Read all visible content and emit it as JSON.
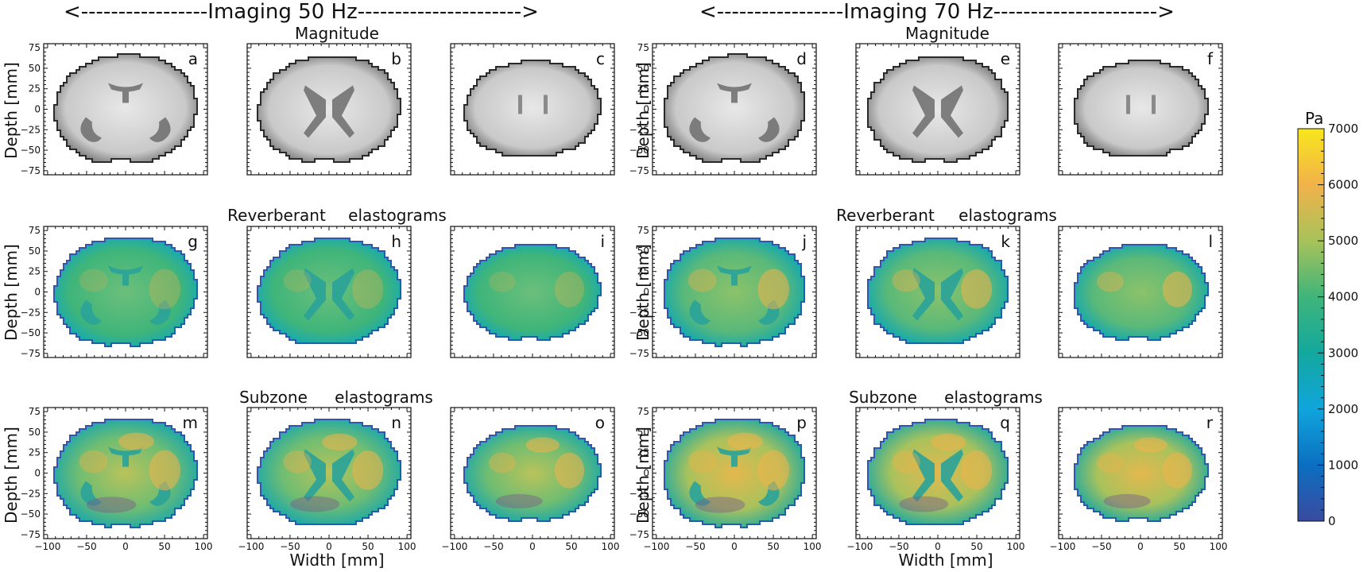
{
  "headers": {
    "left": "<-----------------Imaging 50 Hz---------------------->",
    "right": "<-----------------Imaging 70 Hz---------------------->"
  },
  "row_titles": {
    "magnitude": "Magnitude",
    "reverberant_a": "Reverberant",
    "reverberant_b": "elastograms",
    "subzone_a": "Subzone",
    "subzone_b": "elastograms"
  },
  "axis_labels": {
    "y": "Depth [mm]",
    "x": "Width [mm]"
  },
  "colorbar": {
    "unit": "Pa",
    "ticks": [
      "0",
      "1000",
      "2000",
      "3000",
      "4000",
      "5000",
      "6000",
      "7000"
    ]
  },
  "chart_data": {
    "type": "heatmap",
    "x_ticks": [
      "−100",
      "−50",
      "0",
      "50",
      "100"
    ],
    "y_ticks": [
      "75",
      "50",
      "25",
      "0",
      "−25",
      "−50",
      "−75"
    ],
    "xlim": [
      -105,
      105
    ],
    "ylim": [
      -80,
      80
    ],
    "panels": [
      {
        "label": "a",
        "row": "magnitude",
        "freq_hz": 50,
        "slice": 1
      },
      {
        "label": "b",
        "row": "magnitude",
        "freq_hz": 50,
        "slice": 2
      },
      {
        "label": "c",
        "row": "magnitude",
        "freq_hz": 50,
        "slice": 3
      },
      {
        "label": "d",
        "row": "magnitude",
        "freq_hz": 70,
        "slice": 1
      },
      {
        "label": "e",
        "row": "magnitude",
        "freq_hz": 70,
        "slice": 2
      },
      {
        "label": "f",
        "row": "magnitude",
        "freq_hz": 70,
        "slice": 3
      },
      {
        "label": "g",
        "row": "reverberant",
        "freq_hz": 50,
        "slice": 1
      },
      {
        "label": "h",
        "row": "reverberant",
        "freq_hz": 50,
        "slice": 2
      },
      {
        "label": "i",
        "row": "reverberant",
        "freq_hz": 50,
        "slice": 3
      },
      {
        "label": "j",
        "row": "reverberant",
        "freq_hz": 70,
        "slice": 1
      },
      {
        "label": "k",
        "row": "reverberant",
        "freq_hz": 70,
        "slice": 2
      },
      {
        "label": "l",
        "row": "reverberant",
        "freq_hz": 70,
        "slice": 3
      },
      {
        "label": "m",
        "row": "subzone",
        "freq_hz": 50,
        "slice": 1
      },
      {
        "label": "n",
        "row": "subzone",
        "freq_hz": 50,
        "slice": 2
      },
      {
        "label": "o",
        "row": "subzone",
        "freq_hz": 50,
        "slice": 3
      },
      {
        "label": "p",
        "row": "subzone",
        "freq_hz": 70,
        "slice": 1
      },
      {
        "label": "q",
        "row": "subzone",
        "freq_hz": 70,
        "slice": 2
      },
      {
        "label": "r",
        "row": "subzone",
        "freq_hz": 70,
        "slice": 3
      }
    ],
    "colorbar_range": [
      0,
      7000
    ],
    "colors": {
      "stops": [
        "#3a4a9f",
        "#0b6fc1",
        "#10a5dc",
        "#13a89e",
        "#3fb57a",
        "#a8c25a",
        "#f2b24a",
        "#f8e71c"
      ],
      "magnitude_dark": "#5a5a5a",
      "magnitude_light": "#e8e8e8"
    }
  }
}
